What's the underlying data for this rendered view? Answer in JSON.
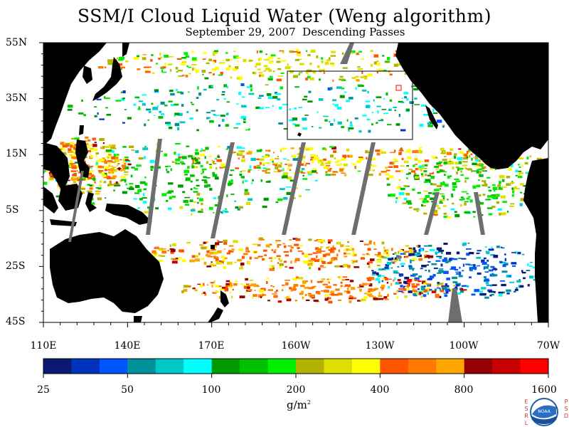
{
  "header": {
    "title": "SSM/I Cloud Liquid Water (Weng algorithm)",
    "subtitle": "September 29, 2007  Descending Passes"
  },
  "axes": {
    "lat_ticks": [
      "55N",
      "35N",
      "15N",
      "5S",
      "25S",
      "45S"
    ],
    "lon_ticks": [
      "110E",
      "140E",
      "170E",
      "160W",
      "130W",
      "100W",
      "70W"
    ]
  },
  "colorbar": {
    "labels": [
      "25",
      "50",
      "100",
      "200",
      "400",
      "800",
      "1600"
    ],
    "units_base": "g/m",
    "units_exp": "2",
    "colors": [
      "#0a1a73",
      "#0033bb",
      "#0055ff",
      "#00919a",
      "#00c8c8",
      "#00ffff",
      "#009900",
      "#00c000",
      "#00ee00",
      "#b2b200",
      "#dede00",
      "#ffff00",
      "#ff5500",
      "#ff7a00",
      "#ffa500",
      "#960000",
      "#c80000",
      "#ff0000"
    ]
  },
  "credits": {
    "left_letters": [
      "E",
      "S",
      "R",
      "L"
    ],
    "right_letters": [
      "P",
      "S",
      "D"
    ],
    "logo_text": "NOAA"
  }
}
